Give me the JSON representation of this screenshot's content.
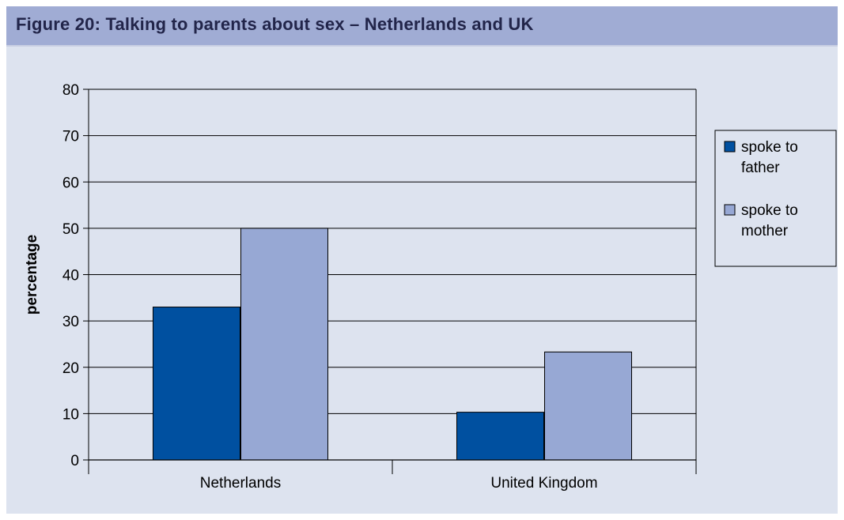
{
  "figure": {
    "title": "Figure 20:  Talking to parents about sex – Netherlands and UK"
  },
  "chart_data": {
    "type": "bar",
    "categories": [
      "Netherlands",
      "United Kingdom"
    ],
    "series": [
      {
        "name": "spoke to father",
        "legend_lines": [
          "spoke to",
          "father"
        ],
        "values": [
          33,
          10.3
        ],
        "color": "#0050a0"
      },
      {
        "name": "spoke to mother",
        "legend_lines": [
          "spoke to",
          "mother"
        ],
        "values": [
          50,
          23.3
        ],
        "color": "#97a8d4"
      }
    ],
    "ylabel": "percentage",
    "xlabel": "",
    "ylim": [
      0,
      80
    ],
    "yticks": [
      0,
      10,
      20,
      30,
      40,
      50,
      60,
      70,
      80
    ],
    "grid": true,
    "legend_position": "right",
    "plot_background": "#dde3ef"
  }
}
